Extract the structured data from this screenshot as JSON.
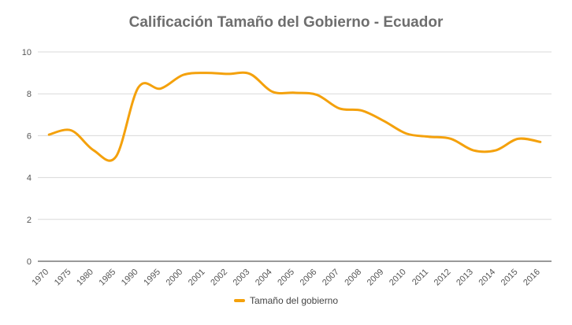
{
  "chart_data": {
    "type": "line",
    "title": "Calificación Tamaño del Gobierno - Ecuador",
    "xlabel": "",
    "ylabel": "",
    "categories": [
      "1970",
      "1975",
      "1980",
      "1985",
      "1990",
      "1995",
      "2000",
      "2001",
      "2002",
      "2003",
      "2004",
      "2005",
      "2006",
      "2007",
      "2008",
      "2009",
      "2010",
      "2011",
      "2012",
      "2013",
      "2014",
      "2015",
      "2016"
    ],
    "series": [
      {
        "name": "Tamaño del gobierno",
        "values": [
          6.05,
          6.25,
          5.3,
          5.0,
          8.3,
          8.25,
          8.9,
          9.0,
          8.95,
          8.95,
          8.1,
          8.05,
          7.95,
          7.3,
          7.2,
          6.7,
          6.1,
          5.95,
          5.85,
          5.3,
          5.3,
          5.85,
          5.7
        ]
      }
    ],
    "ylim": [
      0,
      10
    ],
    "yticks": [
      0,
      2,
      4,
      6,
      8,
      10
    ],
    "grid": true,
    "legend_position": "bottom",
    "colors": {
      "line": "#f4a10c",
      "grid": "#d9d9d9",
      "axis": "#333333"
    }
  }
}
